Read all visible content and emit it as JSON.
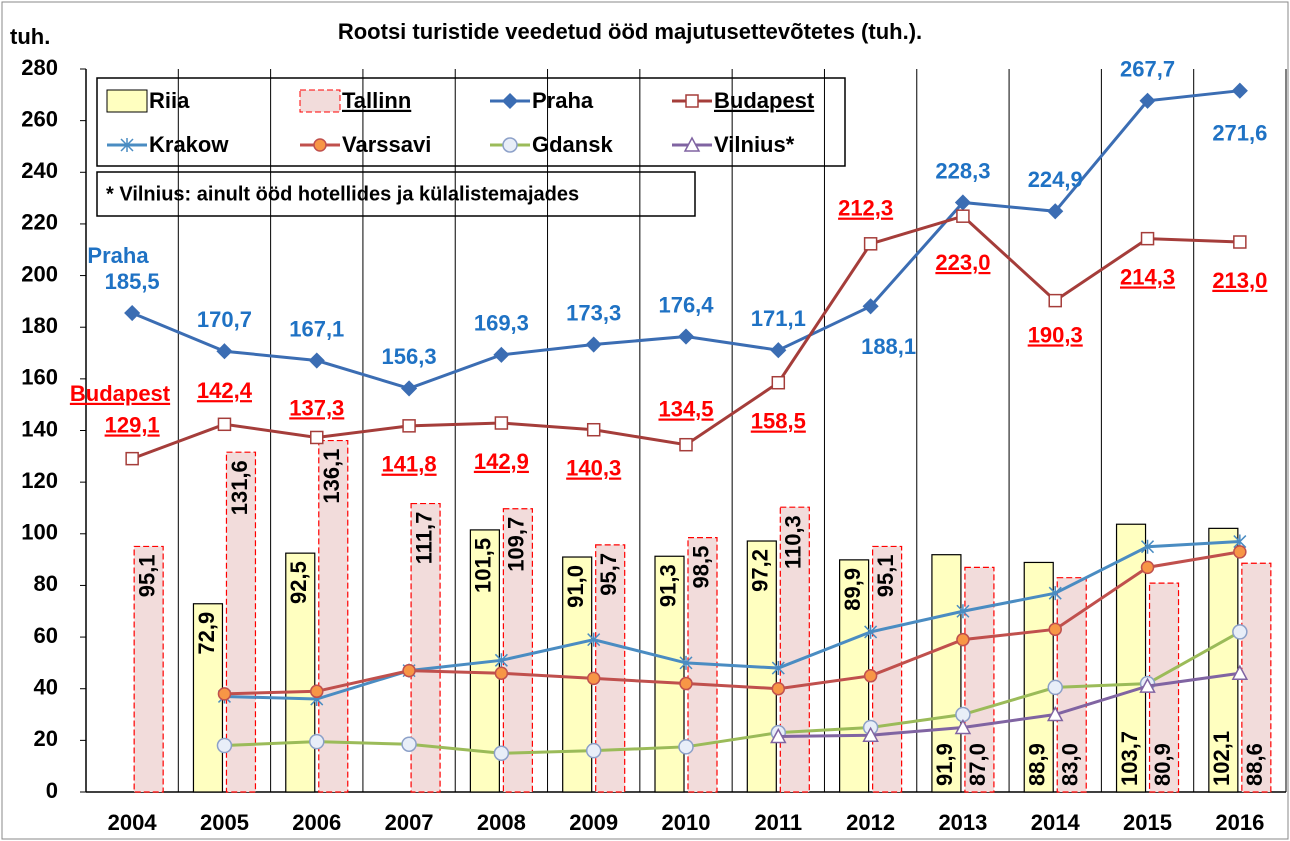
{
  "chart_data": {
    "type": "combo",
    "title": "Rootsi turistide veedetud ööd majutusettevõtetes (tuh.).",
    "y_axis_label": "tuh.",
    "note": "* Vilnius: ainult ööd hotellides ja külalistemajades",
    "annotations": [
      "Praha",
      "Budapest"
    ],
    "categories": [
      "2004",
      "2005",
      "2006",
      "2007",
      "2008",
      "2009",
      "2010",
      "2011",
      "2012",
      "2013",
      "2014",
      "2015",
      "2016"
    ],
    "ylim": [
      0,
      280
    ],
    "yticks": [
      0,
      20,
      40,
      60,
      80,
      100,
      120,
      140,
      160,
      180,
      200,
      220,
      240,
      260,
      280
    ],
    "grid": "x",
    "legend": "top-left",
    "series": [
      {
        "name": "Riia",
        "type": "bar",
        "color": "#ffffc0",
        "stroke": "#000000",
        "values": [
          null,
          72.9,
          92.5,
          null,
          101.5,
          91.0,
          91.3,
          97.2,
          89.9,
          91.9,
          88.9,
          103.7,
          102.1
        ],
        "value_labels": [
          null,
          "72,9",
          "92,5",
          null,
          "101,5",
          "91,0",
          "91,3",
          "97,2",
          "89,9",
          "91,9",
          "88,9",
          "103,7",
          "102,1"
        ]
      },
      {
        "name": "Tallinn",
        "type": "bar",
        "color": "#f2dcdb",
        "stroke": "#ff0000",
        "values": [
          95.1,
          131.6,
          136.1,
          111.7,
          109.7,
          95.7,
          98.5,
          110.3,
          95.1,
          87.0,
          83.0,
          80.9,
          88.6
        ],
        "value_labels": [
          "95,1",
          "131,6",
          "136,1",
          "111,7",
          "109,7",
          "95,7",
          "98,5",
          "110,3",
          "95,1",
          "87,0",
          "83,0",
          "80,9",
          "88,6"
        ]
      },
      {
        "name": "Praha",
        "type": "line",
        "color": "#3b6db3",
        "marker": "diamond",
        "marker_fill": "#3b6db3",
        "label_color": "#1f72c4",
        "values": [
          185.5,
          170.7,
          167.1,
          156.3,
          169.3,
          173.3,
          176.4,
          171.1,
          188.1,
          228.3,
          224.9,
          267.7,
          271.6
        ],
        "value_labels": [
          "185,5",
          "170,7",
          "167,1",
          "156,3",
          "169,3",
          "173,3",
          "176,4",
          "171,1",
          "188,1",
          "228,3",
          "224,9",
          "267,7",
          "271,6"
        ]
      },
      {
        "name": "Budapest",
        "type": "line",
        "color": "#a53d3a",
        "marker": "square",
        "marker_fill": "#ffffff",
        "label_color": "#ff0000",
        "values": [
          129.1,
          142.4,
          137.3,
          141.8,
          142.9,
          140.3,
          134.5,
          158.5,
          212.3,
          223.0,
          190.3,
          214.3,
          213.0
        ],
        "value_labels": [
          "129,1",
          "142,4",
          "137,3",
          "141,8",
          "142,9",
          "140,3",
          "134,5",
          "158,5",
          "212,3",
          "223,0",
          "190,3",
          "214,3",
          "213,0"
        ]
      },
      {
        "name": "Krakow",
        "type": "line",
        "color": "#4a8cc2",
        "marker": "star",
        "marker_fill": "#4a8cc2",
        "values": [
          null,
          37,
          36,
          47,
          51,
          59,
          50,
          48,
          62,
          70,
          77,
          95,
          97
        ]
      },
      {
        "name": "Varssavi",
        "type": "line",
        "color": "#c0504d",
        "marker": "circle",
        "marker_fill": "#f79646",
        "values": [
          null,
          38,
          39,
          47,
          46,
          44,
          42,
          40,
          45,
          59,
          63,
          87,
          93
        ]
      },
      {
        "name": "Gdansk",
        "type": "line",
        "color": "#9bbb59",
        "marker": "circle-open",
        "marker_fill": "#e8eef8",
        "values": [
          null,
          18,
          19.5,
          18.5,
          15,
          16,
          17.5,
          23,
          25,
          30,
          40.5,
          42,
          62
        ]
      },
      {
        "name": "Vilnius*",
        "type": "line",
        "color": "#8064a2",
        "marker": "triangle",
        "marker_fill": "#ffffff",
        "values": [
          null,
          null,
          null,
          null,
          null,
          null,
          null,
          21.5,
          22,
          25,
          30,
          41,
          46
        ]
      }
    ]
  }
}
